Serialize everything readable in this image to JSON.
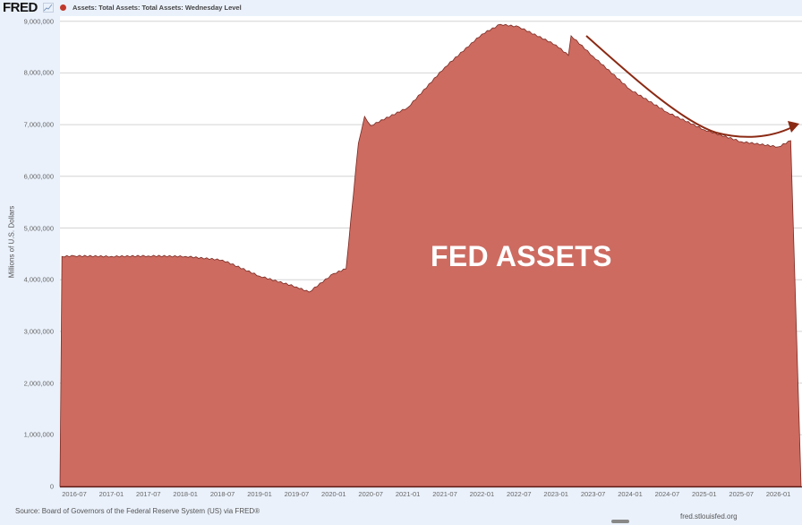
{
  "header": {
    "logo": "FRED",
    "logo_icon": "line-chart-icon",
    "legend": [
      {
        "label": "Assets: Total Assets: Total Assets: Wednesday Level",
        "color": "#c0392b"
      }
    ]
  },
  "annotation": {
    "text": "FED ASSETS",
    "arrow": "curved-trend-arrow",
    "arrow_color": "#8b2a14"
  },
  "footer": {
    "source": "Source: Board of Governors of the Federal Reserve System (US) via FRED®",
    "site": "fred.stlouisfed.org"
  },
  "colors": {
    "area_fill": "#cd6b61",
    "area_line": "#7a2a22",
    "background": "#eaf1fb",
    "plot_bg": "#ffffff",
    "grid": "#d6d6d6"
  },
  "chart_data": {
    "type": "area",
    "title": "",
    "xlabel": "",
    "ylabel": "Millions of U.S. Dollars",
    "ylim": [
      0,
      9000000
    ],
    "grid": true,
    "legend_position": "top-left",
    "yticks": [
      "0",
      "1,000,000",
      "2,000,000",
      "3,000,000",
      "4,000,000",
      "5,000,000",
      "6,000,000",
      "7,000,000",
      "8,000,000",
      "9,000,000"
    ],
    "xticks": [
      "2016-07",
      "2017-01",
      "2017-07",
      "2018-01",
      "2018-07",
      "2019-01",
      "2019-07",
      "2020-01",
      "2020-07",
      "2021-01",
      "2021-07",
      "2022-01",
      "2022-07",
      "2023-01",
      "2023-07",
      "2024-01",
      "2024-07",
      "2025-01",
      "2025-07",
      "2026-01"
    ],
    "series": [
      {
        "name": "Assets: Total Assets: Total Assets: Wednesday Level",
        "x": [
          "2016-05",
          "2016-07",
          "2017-01",
          "2017-07",
          "2018-01",
          "2018-07",
          "2019-01",
          "2019-07",
          "2019-09",
          "2020-01",
          "2020-03",
          "2020-05",
          "2020-06",
          "2020-07",
          "2021-01",
          "2021-07",
          "2022-01",
          "2022-04",
          "2022-07",
          "2023-01",
          "2023-03",
          "2023-03b",
          "2023-07",
          "2024-01",
          "2024-07",
          "2025-01",
          "2025-07",
          "2026-01",
          "2026-03"
        ],
        "values": [
          4450000,
          4460000,
          4450000,
          4460000,
          4450000,
          4380000,
          4070000,
          3860000,
          3760000,
          4120000,
          4210000,
          6640000,
          7160000,
          6980000,
          7330000,
          8110000,
          8750000,
          8940000,
          8890000,
          8540000,
          8340000,
          8720000,
          8320000,
          7680000,
          7240000,
          6900000,
          6670000,
          6570000,
          6690000
        ]
      }
    ]
  }
}
